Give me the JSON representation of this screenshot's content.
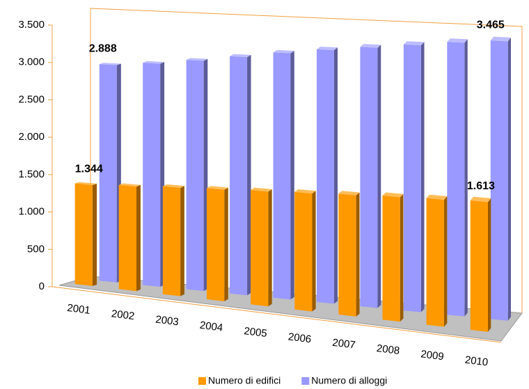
{
  "chart_data": {
    "type": "bar3d",
    "categories": [
      "2001",
      "2002",
      "2003",
      "2004",
      "2005",
      "2006",
      "2007",
      "2008",
      "2009",
      "2010"
    ],
    "series": [
      {
        "name": "Numero di edifici",
        "color": "#ff9900",
        "values": [
          1344,
          1380,
          1420,
          1450,
          1480,
          1510,
          1540,
          1570,
          1590,
          1613
        ],
        "value_labels": [
          "1.344",
          null,
          null,
          null,
          null,
          null,
          null,
          null,
          null,
          "1.613"
        ]
      },
      {
        "name": "Numero di alloggi",
        "color": "#9999ff",
        "values": [
          2888,
          2940,
          3010,
          3090,
          3170,
          3240,
          3300,
          3360,
          3420,
          3465
        ],
        "value_labels": [
          "2.888",
          null,
          null,
          null,
          null,
          null,
          null,
          null,
          null,
          "3.465"
        ]
      }
    ],
    "ylim": [
      0,
      3500
    ],
    "yticks": [
      0,
      {
        "value": 500,
        "label": "500"
      },
      {
        "value": 1000,
        "label": "1.000"
      },
      {
        "value": 1500,
        "label": "1.500"
      },
      {
        "value": 2000,
        "label": "2.000"
      },
      {
        "value": 2500,
        "label": "2.500"
      },
      {
        "value": 3000,
        "label": "3.000"
      },
      {
        "value": 3500,
        "label": "3.500"
      }
    ],
    "legend": "bottom"
  }
}
